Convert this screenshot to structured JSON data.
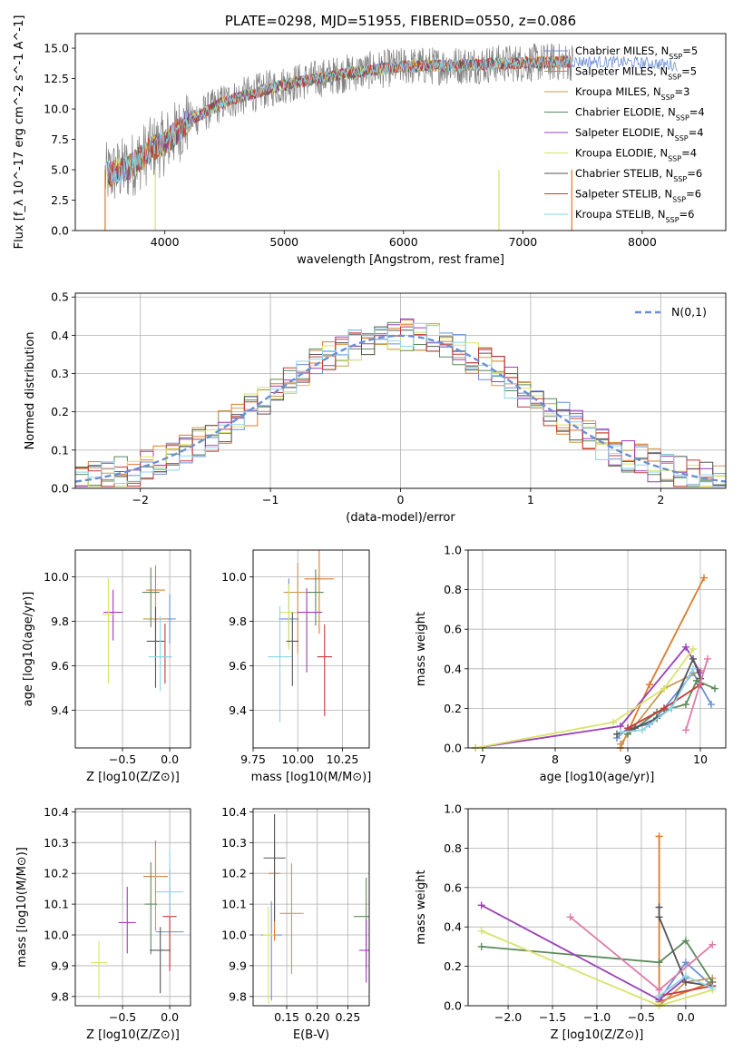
{
  "colors": [
    "#6a8fd6",
    "#e07a2a",
    "#c99a56",
    "#5b8a5b",
    "#9b3fb8",
    "#d9e36a",
    "#555555",
    "#c83a3a",
    "#8ed4e8"
  ],
  "chart_data": [
    {
      "type": "line",
      "title": "PLATE=0298, MJD=51955, FIBERID=0550, z=0.086",
      "xlabel": "wavelength [Angstrom, rest frame]",
      "ylabel": "Flux [f_λ 10^-17 erg cm^-2 s^-1 A^-1]",
      "xlim": [
        3250,
        8700
      ],
      "ylim": [
        0,
        16.2
      ],
      "xticks": [
        4000,
        5000,
        6000,
        7000,
        8000
      ],
      "yticks": [
        0.0,
        2.5,
        5.0,
        7.5,
        10.0,
        12.5,
        15.0
      ],
      "legend": "top-right",
      "series": [
        {
          "name": "Chabrier MILES, N_SSP=5"
        },
        {
          "name": "Salpeter MILES, N_SSP=5"
        },
        {
          "name": "Kroupa MILES, N_SSP=3"
        },
        {
          "name": "Chabrier ELODIE, N_SSP=4"
        },
        {
          "name": "Salpeter ELODIE, N_SSP=4"
        },
        {
          "name": "Kroupa ELODIE, N_SSP=4"
        },
        {
          "name": "Chabrier STELIB, N_SSP=6"
        },
        {
          "name": "Salpeter STELIB, N_SSP=6"
        },
        {
          "name": "Kroupa STELIB, N_SSP=6"
        }
      ],
      "continuum": [
        [
          3500,
          4.5
        ],
        [
          3700,
          5.2
        ],
        [
          3900,
          6.8
        ],
        [
          4000,
          7.2
        ],
        [
          4200,
          9.0
        ],
        [
          4500,
          10.6
        ],
        [
          5000,
          12.0
        ],
        [
          5500,
          12.9
        ],
        [
          6000,
          13.5
        ],
        [
          6500,
          13.6
        ],
        [
          7000,
          13.8
        ],
        [
          7500,
          13.9
        ],
        [
          8000,
          13.8
        ],
        [
          8300,
          13.6
        ]
      ]
    },
    {
      "type": "line",
      "xlabel": "(data-model)/error",
      "ylabel": "Normed distribution",
      "xlim": [
        -2.5,
        2.5
      ],
      "ylim": [
        0,
        0.51
      ],
      "xticks": [
        -2,
        -1,
        0,
        1,
        2
      ],
      "yticks": [
        0.0,
        0.1,
        0.2,
        0.3,
        0.4,
        0.5
      ],
      "legend": "top-right",
      "curve_name": "N(0,1)",
      "grid": true
    },
    {
      "type": "scatter",
      "xlabel": "Z [log10(Z/Z⊙)]",
      "ylabel": "age [log10(age/yr)]",
      "xlim": [
        -1.0,
        0.22
      ],
      "ylim": [
        9.23,
        10.12
      ],
      "xticks": [
        -0.5,
        0.0
      ],
      "yticks": [
        9.4,
        9.6,
        9.8,
        10.0
      ],
      "points": [
        [
          0.0,
          9.81
        ],
        [
          -0.15,
          9.94
        ],
        [
          -0.15,
          9.81
        ],
        [
          -0.2,
          9.93
        ],
        [
          -0.6,
          9.84
        ],
        [
          -0.65,
          9.83
        ],
        [
          -0.15,
          9.71
        ],
        [
          -0.05,
          9.64
        ],
        [
          -0.1,
          9.64
        ]
      ]
    },
    {
      "type": "scatter",
      "xlabel": "mass [log10(M/M⊙)]",
      "ylabel": "",
      "xlim": [
        9.75,
        10.4
      ],
      "ylim": [
        9.23,
        10.12
      ],
      "xticks": [
        9.75,
        10.0,
        10.25
      ],
      "yticks": [
        9.4,
        9.6,
        9.8,
        10.0
      ],
      "points": [
        [
          9.95,
          9.81
        ],
        [
          10.12,
          9.99
        ],
        [
          10.0,
          9.93
        ],
        [
          10.1,
          9.93
        ],
        [
          10.05,
          9.84
        ],
        [
          9.95,
          9.84
        ],
        [
          9.97,
          9.71
        ],
        [
          10.15,
          9.64
        ],
        [
          9.9,
          9.64
        ]
      ]
    },
    {
      "type": "line",
      "xlabel": "age [log10(age/yr)]",
      "ylabel": "mass weight",
      "xlim": [
        6.8,
        10.35
      ],
      "ylim": [
        0,
        1.0
      ],
      "xticks": [
        7,
        8,
        9,
        10
      ],
      "yticks": [
        0.0,
        0.2,
        0.4,
        0.6,
        0.8,
        1.0
      ],
      "series": [
        {
          "x": [
            8.85,
            9.0,
            9.3,
            9.5,
            9.9,
            10.15
          ],
          "y": [
            0.05,
            0.1,
            0.12,
            0.2,
            0.38,
            0.22
          ]
        },
        {
          "x": [
            8.9,
            9.3,
            10.05
          ],
          "y": [
            0.0,
            0.32,
            0.86
          ]
        },
        {
          "x": [
            8.9,
            9.5,
            10.0
          ],
          "y": [
            0.02,
            0.3,
            0.39
          ]
        },
        {
          "x": [
            9.0,
            9.4,
            9.8,
            9.95,
            10.2
          ],
          "y": [
            0.07,
            0.18,
            0.22,
            0.34,
            0.3
          ]
        },
        {
          "x": [
            6.9,
            8.9,
            9.8,
            10.0
          ],
          "y": [
            0.0,
            0.11,
            0.51,
            0.38
          ]
        },
        {
          "x": [
            6.9,
            8.8,
            9.5,
            9.9
          ],
          "y": [
            0.0,
            0.13,
            0.3,
            0.5
          ]
        },
        {
          "x": [
            8.85,
            9.1,
            9.4,
            9.6,
            9.9,
            10.0
          ],
          "y": [
            0.07,
            0.1,
            0.15,
            0.2,
            0.45,
            0.35
          ]
        },
        {
          "x": [
            9.0,
            9.5,
            10.0
          ],
          "y": [
            0.1,
            0.2,
            0.32
          ]
        },
        {
          "x": [
            8.9,
            9.2,
            9.6,
            9.9
          ],
          "y": [
            0.08,
            0.09,
            0.2,
            0.4
          ]
        },
        {
          "x": [
            9.8,
            10.1
          ],
          "y": [
            0.09,
            0.45
          ]
        }
      ]
    },
    {
      "type": "scatter",
      "xlabel": "Z [log10(Z/Z⊙)]",
      "ylabel": "mass [log10(M/M⊙)]",
      "xlim": [
        -1.0,
        0.22
      ],
      "ylim": [
        9.77,
        10.41
      ],
      "xticks": [
        -0.5,
        0.0
      ],
      "yticks": [
        9.8,
        9.9,
        10.0,
        10.1,
        10.2,
        10.3,
        10.4
      ],
      "points": [
        [
          0.0,
          10.01
        ],
        [
          -0.15,
          10.19
        ],
        [
          -0.15,
          10.19
        ],
        [
          -0.2,
          10.1
        ],
        [
          -0.45,
          10.04
        ],
        [
          -0.75,
          9.91
        ],
        [
          -0.1,
          9.95
        ],
        [
          0.0,
          10.06
        ],
        [
          0.0,
          10.14
        ]
      ]
    },
    {
      "type": "scatter",
      "xlabel": "E(B-V)",
      "ylabel": "",
      "xlim": [
        0.095,
        0.285
      ],
      "ylim": [
        9.77,
        10.41
      ],
      "xticks": [
        0.15,
        0.2,
        0.25
      ],
      "yticks": [
        9.8,
        9.9,
        10.0,
        10.1,
        10.2,
        10.3,
        10.4
      ],
      "points": [
        [
          0.125,
          10.0
        ],
        [
          0.13,
          10.2
        ],
        [
          0.158,
          10.07
        ],
        [
          0.28,
          10.06
        ],
        [
          0.28,
          9.95
        ],
        [
          0.12,
          10.0
        ],
        [
          0.13,
          10.25
        ]
      ]
    },
    {
      "type": "line",
      "xlabel": "Z [log10(Z/Z⊙)]",
      "ylabel": "mass weight",
      "xlim": [
        -2.45,
        0.45
      ],
      "ylim": [
        0,
        1.0
      ],
      "xticks": [
        -2.0,
        -1.5,
        -1.0,
        -0.5,
        0.0
      ],
      "yticks": [
        0.0,
        0.2,
        0.4,
        0.6,
        0.8,
        1.0
      ],
      "series": [
        {
          "x": [
            -0.3,
            0.0,
            0.3
          ],
          "y": [
            0.03,
            0.22,
            0.1
          ]
        },
        {
          "x": [
            -0.3,
            -0.3,
            0.3
          ],
          "y": [
            0.86,
            0.02,
            0.12
          ]
        },
        {
          "x": [
            -0.3,
            0.0,
            0.3
          ],
          "y": [
            0.0,
            0.12,
            0.14
          ]
        },
        {
          "x": [
            -2.3,
            -0.3,
            0.0,
            0.3
          ],
          "y": [
            0.3,
            0.22,
            0.33,
            0.12
          ]
        },
        {
          "x": [
            -2.3,
            -0.3,
            0.0
          ],
          "y": [
            0.51,
            0.03,
            0.14
          ]
        },
        {
          "x": [
            -2.3,
            -0.3,
            0.3
          ],
          "y": [
            0.38,
            0.0,
            0.08
          ]
        },
        {
          "x": [
            -0.3,
            -0.3,
            0.0,
            0.3
          ],
          "y": [
            0.5,
            0.45,
            0.12,
            0.1
          ]
        },
        {
          "x": [
            -0.3,
            0.3
          ],
          "y": [
            0.05,
            0.1
          ]
        },
        {
          "x": [
            -0.3,
            0.0,
            0.3
          ],
          "y": [
            0.05,
            0.15,
            0.09
          ]
        },
        {
          "x": [
            -1.3,
            -0.3,
            0.3
          ],
          "y": [
            0.45,
            0.08,
            0.31
          ]
        }
      ]
    }
  ]
}
